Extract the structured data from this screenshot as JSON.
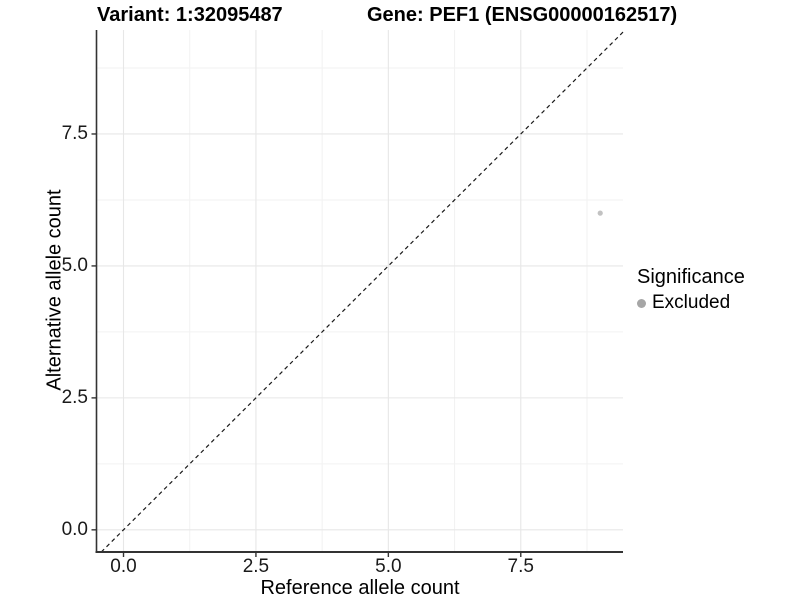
{
  "titles": {
    "variant": "Variant: 1:32095487",
    "gene": "Gene: PEF1 (ENSG00000162517)"
  },
  "legend": {
    "title": "Significance",
    "items": [
      {
        "label": "Excluded",
        "marker_color": "#a6a6a6"
      }
    ]
  },
  "colors": {
    "background": "#ffffff",
    "grid_major": "#e7e7e7",
    "grid_minor": "#f2f2f2",
    "axis_line": "#333333",
    "tick_mark": "#333333",
    "dashed_line": "#1a1a1a",
    "point": "#c2c2c2"
  },
  "chart_data": {
    "type": "scatter",
    "title": "Variant: 1:32095487   Gene: PEF1 (ENSG00000162517)",
    "xlabel": "Reference allele count",
    "ylabel": "Alternative allele count",
    "xlim": [
      -0.51,
      9.43
    ],
    "ylim": [
      -0.42,
      9.47
    ],
    "x_ticks": [
      0.0,
      2.5,
      5.0,
      7.5
    ],
    "x_tick_labels": [
      "0.0",
      "2.5",
      "5.0",
      "7.5"
    ],
    "y_ticks": [
      0.0,
      2.5,
      5.0,
      7.5
    ],
    "y_tick_labels": [
      "0.0",
      "2.5",
      "5.0",
      "7.5"
    ],
    "x_minor_ticks": [
      1.25,
      3.75,
      6.25,
      8.75
    ],
    "y_minor_ticks": [
      1.25,
      3.75,
      6.25,
      8.75
    ],
    "grid": true,
    "legend_position": "right",
    "series": [
      {
        "name": "Excluded",
        "color": "#c2c2c2",
        "points": [
          {
            "x": 9,
            "y": 6
          }
        ]
      }
    ],
    "reference_line": {
      "type": "identity",
      "slope": 1,
      "intercept": 0,
      "style": "dashed"
    }
  }
}
